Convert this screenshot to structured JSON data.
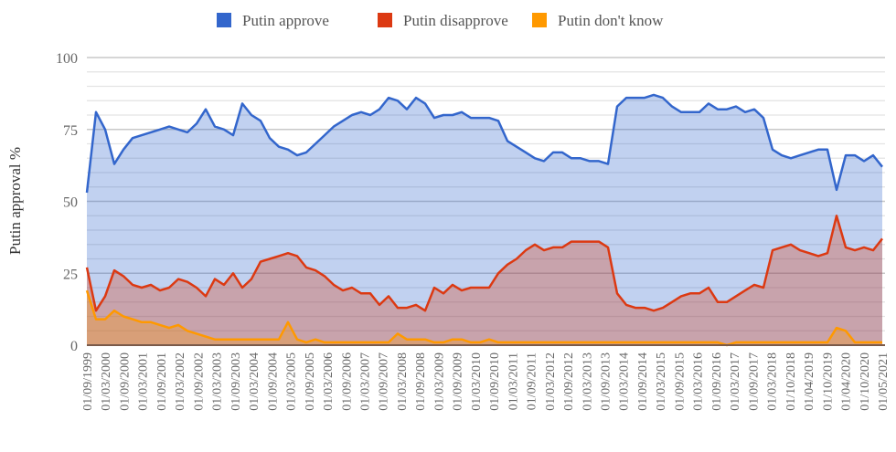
{
  "chart_data": {
    "type": "area",
    "title": "",
    "xlabel": "",
    "ylabel": "Putin approval %",
    "ylim": [
      0,
      100
    ],
    "yticks": [
      "0",
      "25",
      "50",
      "75",
      "100"
    ],
    "grid": true,
    "legend_position": "top",
    "x_tick_labels": [
      "01/09/1999",
      "01/03/2000",
      "01/09/2000",
      "01/03/2001",
      "01/09/2001",
      "01/03/2002",
      "01/09/2002",
      "01/03/2003",
      "01/09/2003",
      "01/03/2004",
      "01/09/2004",
      "01/03/2005",
      "01/09/2005",
      "01/03/2006",
      "01/09/2006",
      "01/03/2007",
      "01/09/2007",
      "01/03/2008",
      "01/09/2008",
      "01/03/2009",
      "01/09/2009",
      "01/03/2010",
      "01/09/2010",
      "01/03/2011",
      "01/09/2011",
      "01/03/2012",
      "01/09/2012",
      "01/03/2013",
      "01/09/2013",
      "01/03/2014",
      "01/09/2014",
      "01/03/2015",
      "01/09/2015",
      "01/03/2016",
      "01/09/2016",
      "01/03/2017",
      "01/09/2017",
      "01/03/2018",
      "01/10/2018",
      "01/04/2019",
      "01/10/2019",
      "01/04/2020",
      "01/10/2020",
      "01/05/2021"
    ],
    "series": [
      {
        "name": "Putin approve",
        "color": "#3366cc",
        "values": [
          53,
          81,
          75,
          63,
          68,
          72,
          73,
          74,
          75,
          76,
          75,
          74,
          77,
          82,
          76,
          75,
          73,
          84,
          80,
          78,
          72,
          69,
          68,
          66,
          67,
          70,
          73,
          76,
          78,
          80,
          81,
          80,
          82,
          86,
          85,
          82,
          86,
          84,
          79,
          80,
          80,
          81,
          79,
          79,
          79,
          78,
          71,
          69,
          67,
          65,
          64,
          67,
          67,
          65,
          65,
          64,
          64,
          63,
          83,
          86,
          86,
          86,
          87,
          86,
          83,
          81,
          81,
          81,
          84,
          82,
          82,
          83,
          81,
          82,
          79,
          68,
          66,
          65,
          66,
          67,
          68,
          68,
          54,
          66,
          66,
          64,
          66,
          62
        ]
      },
      {
        "name": "Putin disapprove",
        "color": "#dc3912",
        "values": [
          27,
          12,
          17,
          26,
          24,
          21,
          20,
          21,
          19,
          20,
          23,
          22,
          20,
          17,
          23,
          21,
          25,
          20,
          23,
          29,
          30,
          31,
          32,
          31,
          27,
          26,
          24,
          21,
          19,
          20,
          18,
          18,
          14,
          17,
          13,
          13,
          14,
          12,
          20,
          18,
          21,
          19,
          20,
          20,
          20,
          25,
          28,
          30,
          33,
          35,
          33,
          34,
          34,
          36,
          36,
          36,
          36,
          34,
          18,
          14,
          13,
          13,
          12,
          13,
          15,
          17,
          18,
          18,
          20,
          15,
          15,
          17,
          19,
          21,
          20,
          33,
          34,
          35,
          33,
          32,
          31,
          32,
          45,
          34,
          33,
          34,
          33,
          37
        ]
      },
      {
        "name": "Putin don't know",
        "color": "#ff9900",
        "values": [
          19,
          9,
          9,
          12,
          10,
          9,
          8,
          8,
          7,
          6,
          7,
          5,
          4,
          3,
          2,
          2,
          2,
          2,
          2,
          2,
          2,
          2,
          8,
          2,
          1,
          2,
          1,
          1,
          1,
          1,
          1,
          1,
          1,
          1,
          4,
          2,
          2,
          2,
          1,
          1,
          2,
          2,
          1,
          1,
          2,
          1,
          1,
          1,
          1,
          1,
          1,
          1,
          1,
          1,
          1,
          1,
          1,
          1,
          1,
          1,
          1,
          1,
          1,
          1,
          1,
          1,
          1,
          1,
          1,
          1,
          0,
          1,
          1,
          1,
          1,
          1,
          1,
          1,
          1,
          1,
          1,
          1,
          6,
          5,
          1,
          1,
          1,
          1
        ]
      }
    ]
  }
}
